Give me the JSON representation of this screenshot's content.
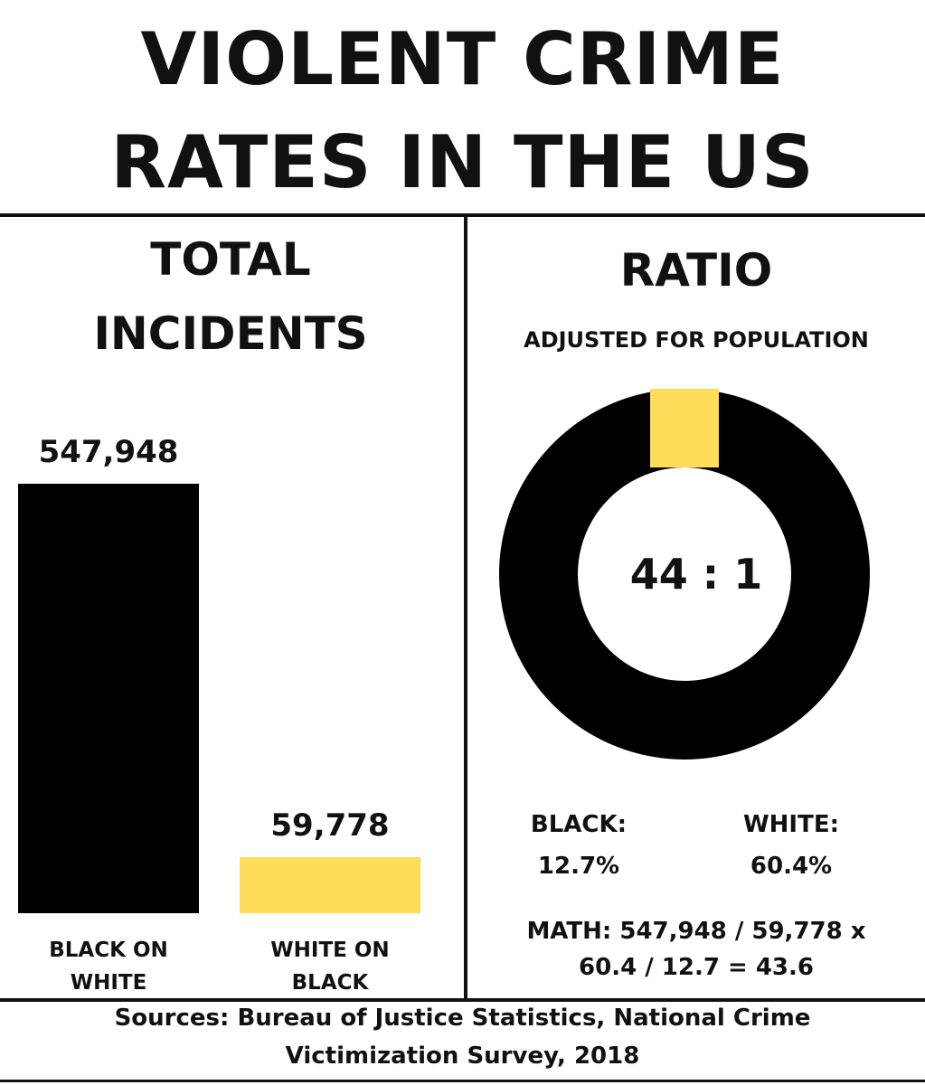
{
  "title": {
    "line1": "VIOLENT CRIME",
    "line2": "RATES IN THE US"
  },
  "left_panel": {
    "heading_line1": "TOTAL",
    "heading_line2": "INCIDENTS"
  },
  "right_panel": {
    "heading": "RATIO",
    "subheading": "ADJUSTED FOR POPULATION",
    "center_label": "44 : 1",
    "black_label": "BLACK:",
    "black_value": "12.7%",
    "white_label": "WHITE:",
    "white_value": "60.4%",
    "math_line1": "MATH: 547,948 / 59,778 x",
    "math_line2": "60.4 / 12.7 = 43.6"
  },
  "footer": {
    "line1": "Sources: Bureau of Justice Statistics, National Crime",
    "line2": "Victimization Survey, 2018"
  },
  "colors": {
    "black": "#000000",
    "yellow": "#FFDC5A",
    "text": "#111111"
  },
  "chart_data": [
    {
      "type": "bar",
      "categories": [
        "BLACK ON WHITE",
        "WHITE ON BLACK"
      ],
      "category_lines": [
        [
          "BLACK ON",
          "WHITE"
        ],
        [
          "WHITE ON",
          "BLACK"
        ]
      ],
      "values": [
        547948,
        59778
      ],
      "value_labels": [
        "547,948",
        "59,778"
      ],
      "colors": [
        "#000000",
        "#FFDC5A"
      ]
    },
    {
      "type": "pie",
      "style": "donut",
      "labels": [
        "BLACK",
        "WHITE"
      ],
      "values": [
        44,
        1
      ],
      "colors": [
        "#000000",
        "#FFDC5A"
      ]
    }
  ]
}
